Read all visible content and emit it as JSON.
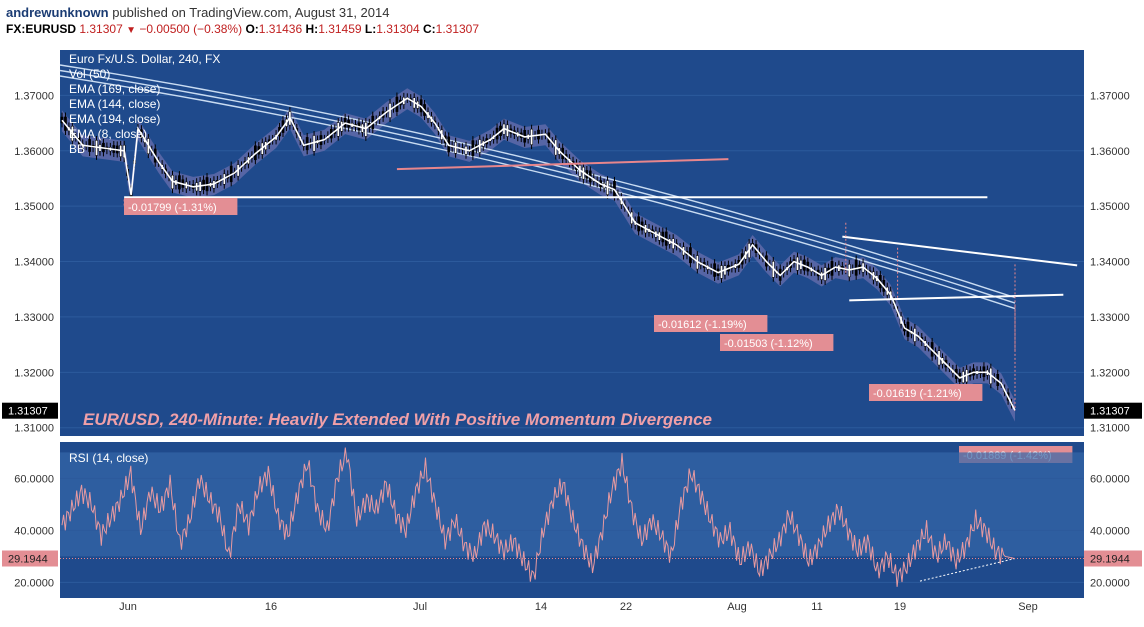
{
  "header": {
    "author": "andrewunknown",
    "published_text": "published on TradingView.com, August 31, 2014",
    "symbol": "FX:EURUSD",
    "last": "1.31307",
    "change": "−0.00500 (−0.38%)",
    "o_label": "O:",
    "open": "1.31436",
    "h_label": "H:",
    "high": "1.31459",
    "l_label": "L:",
    "low": "1.31304",
    "c_label": "C:",
    "close": "1.31307"
  },
  "legend": {
    "title": "Euro Fx/U.S. Dollar, 240, FX",
    "vol": "Vol (50)",
    "ema1": "EMA (169, close)",
    "ema2": "EMA (144, close)",
    "ema3": "EMA (194, close)",
    "ema4": "EMA (8, close)",
    "bb": "BB"
  },
  "rsi_legend": "RSI (14, close)",
  "chart_data": [
    {
      "type": "line",
      "name": "price-pane",
      "title": "EUR/USD, 240-Minute: Heavily Extended With Positive Momentum Divergence",
      "yticks": [
        "1.37000",
        "1.36000",
        "1.35000",
        "1.34000",
        "1.33000",
        "1.32000",
        "1.31000"
      ],
      "ylim": [
        1.3085,
        1.3782
      ],
      "last_price_label": "1.31307",
      "xticks": [
        "Jun",
        "16",
        "Jul",
        "14",
        "22",
        "Aug",
        "11",
        "19",
        "Sep"
      ],
      "price_path": [
        [
          0,
          1.3655
        ],
        [
          6,
          1.361
        ],
        [
          12,
          1.3605
        ],
        [
          18,
          1.36
        ],
        [
          20,
          1.352
        ],
        [
          22,
          1.364
        ],
        [
          28,
          1.358
        ],
        [
          32,
          1.3545
        ],
        [
          38,
          1.3535
        ],
        [
          44,
          1.354
        ],
        [
          50,
          1.356
        ],
        [
          56,
          1.3595
        ],
        [
          62,
          1.3625
        ],
        [
          66,
          1.366
        ],
        [
          70,
          1.361
        ],
        [
          76,
          1.362
        ],
        [
          82,
          1.365
        ],
        [
          88,
          1.364
        ],
        [
          94,
          1.367
        ],
        [
          100,
          1.3695
        ],
        [
          104,
          1.368
        ],
        [
          108,
          1.365
        ],
        [
          112,
          1.361
        ],
        [
          118,
          1.36
        ],
        [
          124,
          1.362
        ],
        [
          128,
          1.364
        ],
        [
          134,
          1.3625
        ],
        [
          140,
          1.363
        ],
        [
          144,
          1.36
        ],
        [
          150,
          1.3565
        ],
        [
          156,
          1.354
        ],
        [
          160,
          1.353
        ],
        [
          166,
          1.347
        ],
        [
          172,
          1.345
        ],
        [
          178,
          1.343
        ],
        [
          184,
          1.34
        ],
        [
          190,
          1.338
        ],
        [
          196,
          1.3395
        ],
        [
          200,
          1.343
        ],
        [
          204,
          1.34
        ],
        [
          208,
          1.3375
        ],
        [
          212,
          1.34
        ],
        [
          216,
          1.339
        ],
        [
          220,
          1.3375
        ],
        [
          224,
          1.339
        ],
        [
          228,
          1.3385
        ],
        [
          232,
          1.339
        ],
        [
          236,
          1.337
        ],
        [
          240,
          1.334
        ],
        [
          244,
          1.328
        ],
        [
          248,
          1.3265
        ],
        [
          252,
          1.324
        ],
        [
          256,
          1.3215
        ],
        [
          260,
          1.319
        ],
        [
          264,
          1.32
        ],
        [
          268,
          1.32
        ],
        [
          272,
          1.318
        ],
        [
          276,
          1.3131
        ]
      ],
      "ema_bands": [
        {
          "name": "EMA (169, close)",
          "start": 1.3755,
          "end": 1.3335
        },
        {
          "name": "EMA (144, close)",
          "start": 1.3745,
          "end": 1.3325
        },
        {
          "name": "EMA (194, close)",
          "start": 1.3735,
          "end": 1.3315
        }
      ],
      "annotations": [
        {
          "text": "-0.01799 (-1.31%)"
        },
        {
          "text": "-0.01612 (-1.19%)"
        },
        {
          "text": "-0.01503 (-1.12%)"
        },
        {
          "text": "-0.01619 (-1.21%)"
        },
        {
          "text": "-0.01889 (-1.42%)"
        }
      ],
      "support_lines": [
        1.3568,
        1.3516,
        1.3425,
        1.334
      ]
    },
    {
      "type": "line",
      "name": "rsi-pane",
      "yticks": [
        "60.0000",
        "40.0000",
        "20.0000"
      ],
      "ylim": [
        14,
        74
      ],
      "last_value_label": "29.1944",
      "rsi": [
        42,
        48,
        55,
        50,
        38,
        45,
        52,
        62,
        40,
        55,
        48,
        58,
        35,
        44,
        60,
        52,
        46,
        30,
        50,
        42,
        56,
        62,
        45,
        38,
        54,
        66,
        48,
        40,
        60,
        70,
        44,
        52,
        48,
        58,
        46,
        40,
        55,
        64,
        50,
        36,
        44,
        34,
        30,
        42,
        38,
        32,
        36,
        28,
        22,
        40,
        52,
        58,
        44,
        34,
        26,
        40,
        56,
        66,
        48,
        36,
        44,
        38,
        30,
        50,
        62,
        54,
        44,
        36,
        40,
        28,
        34,
        24,
        30,
        36,
        46,
        38,
        28,
        34,
        42,
        48,
        40,
        32,
        36,
        24,
        30,
        22,
        26,
        34,
        40,
        30,
        36,
        28,
        34,
        44,
        40,
        32,
        30,
        29.19
      ]
    }
  ],
  "colors": {
    "pane_bg": "#1f4a8c",
    "ema": "#c9dcf2",
    "bb_fill": "#6a6fae",
    "label_bg": "#e38e94",
    "headline": "#f0a0a8",
    "rsi_line": "#e89aa0",
    "rsi_band": "#3566a8"
  }
}
